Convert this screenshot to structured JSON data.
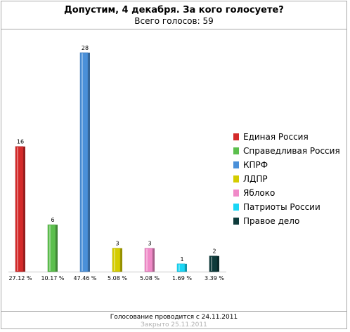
{
  "header": {
    "title": "Допустим, 4 декабря. За кого голосуете?",
    "subtitle": "Всего голосов: 59"
  },
  "footer": {
    "line1": "Голосование проводится с 24.11.2011",
    "line2": "Закрыто 25.11.2011"
  },
  "chart_data": {
    "type": "bar",
    "title": "Допустим, 4 декабря. За кого голосуете?",
    "subtitle": "Всего голосов: 59",
    "categories": [
      "Единая Россия",
      "Справедливая Россия",
      "КПРФ",
      "ЛДПР",
      "Яблоко",
      "Патриоты России",
      "Правое дело"
    ],
    "values": [
      16,
      6,
      28,
      3,
      3,
      1,
      2
    ],
    "percent_labels": [
      "27.12 %",
      "10.17 %",
      "47.46 %",
      "5.08 %",
      "5.08 %",
      "1.69 %",
      "3.39 %"
    ],
    "colors": [
      "#d42a2a",
      "#5cbf4d",
      "#4a90d9",
      "#d4cc00",
      "#f08ac8",
      "#1ad6f5",
      "#0e3b3b"
    ],
    "ylim": [
      0,
      28
    ],
    "legend_position": "right",
    "grid": false
  }
}
